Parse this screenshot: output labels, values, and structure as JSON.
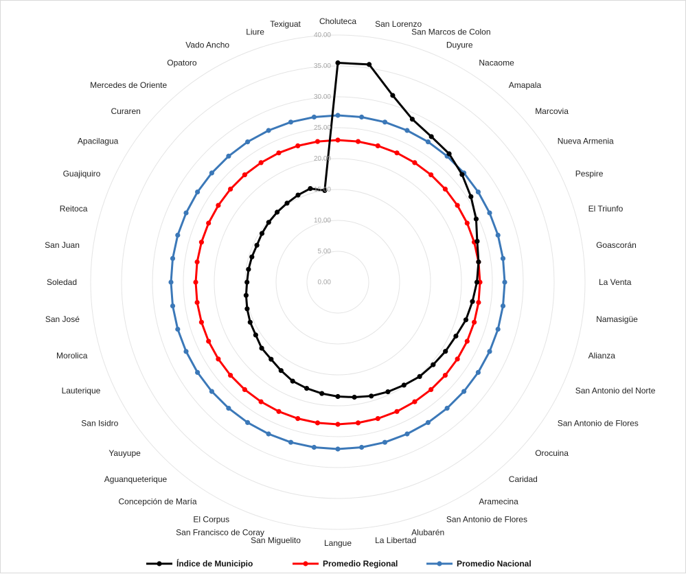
{
  "chart_data": {
    "type": "radar",
    "categories": [
      "Choluteca",
      "San Lorenzo",
      "San Marcos de Colon",
      "Duyure",
      "Nacaome",
      "Amapala",
      "Marcovia",
      "Nueva Armenia",
      "Pespire",
      "El Triunfo",
      "Goascorán",
      "La Venta",
      "Namasigüe",
      "Alianza",
      "San Antonio del Norte",
      "San Antonio de Flores",
      "Orocuina",
      "Caridad",
      "Aramecina",
      "San Antonio de Flores",
      "Alubarén",
      "La Libertad",
      "Langue",
      "San Miguelito",
      "San Francisco de Coray",
      "El Corpus",
      "Concepción de María",
      "Aguanqueterique",
      "Yauyupe",
      "San Isidro",
      "Lauterique",
      "Morolica",
      "San José",
      "Soledad",
      "San Juan",
      "Reitoca",
      "Guajiquiro",
      "Apacilagua",
      "Curaren",
      "Mercedes de Oriente",
      "Opatoro",
      "Vado Ancho",
      "Liure",
      "Texiguat"
    ],
    "r_ticks": [
      "0.00",
      "5.00",
      "10.00",
      "15.00",
      "20.00",
      "25.00",
      "30.00",
      "35.00",
      "40.00"
    ],
    "r_range": [
      0,
      40
    ],
    "grid": true,
    "legend_position": "bottom",
    "series": [
      {
        "name": "Índice de Municipio",
        "color": "#000000",
        "values": [
          35.5,
          35.6,
          31.5,
          29.0,
          28.0,
          27.5,
          26.6,
          25.6,
          24.6,
          23.5,
          23.0,
          22.5,
          22.0,
          21.6,
          21.0,
          20.7,
          20.4,
          20.2,
          19.8,
          19.5,
          19.2,
          18.8,
          18.5,
          18.2,
          17.9,
          17.6,
          17.0,
          16.5,
          16.3,
          15.8,
          15.6,
          15.3,
          15.0,
          14.7,
          14.6,
          14.5,
          14.4,
          14.6,
          14.8,
          15.0,
          15.2,
          15.5,
          15.8,
          15.0
        ]
      },
      {
        "name": "Promedio Regional",
        "color": "#ff0000",
        "values": [
          23,
          23,
          23,
          23,
          23,
          23,
          23,
          23,
          23,
          23,
          23,
          23,
          23,
          23,
          23,
          23,
          23,
          23,
          23,
          23,
          23,
          23,
          23,
          23,
          23,
          23,
          23,
          23,
          23,
          23,
          23,
          23,
          23,
          23,
          23,
          23,
          23,
          23,
          23,
          23,
          23,
          23,
          23,
          23
        ]
      },
      {
        "name": "Promedio Nacional",
        "color": "#3b78b8",
        "values": [
          27,
          27,
          27,
          27,
          27,
          27,
          27,
          27,
          27,
          27,
          27,
          27,
          27,
          27,
          27,
          27,
          27,
          27,
          27,
          27,
          27,
          27,
          27,
          27,
          27,
          27,
          27,
          27,
          27,
          27,
          27,
          27,
          27,
          27,
          27,
          27,
          27,
          27,
          27,
          27,
          27,
          27,
          27,
          27
        ]
      }
    ]
  }
}
